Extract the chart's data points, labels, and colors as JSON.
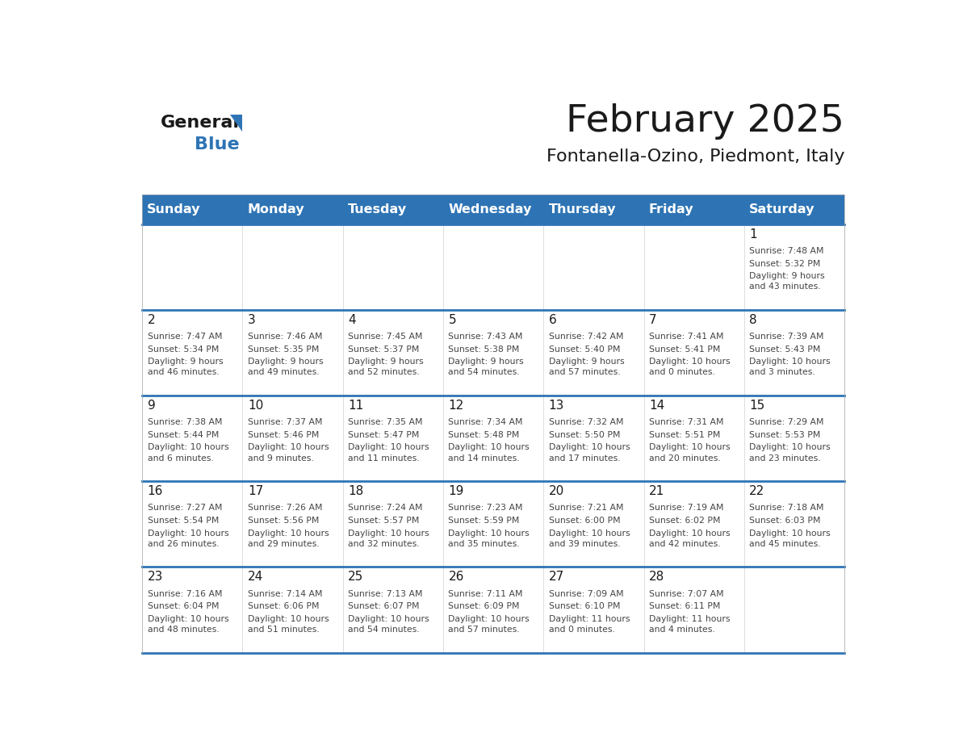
{
  "title": "February 2025",
  "subtitle": "Fontanella-Ozino, Piedmont, Italy",
  "days_of_week": [
    "Sunday",
    "Monday",
    "Tuesday",
    "Wednesday",
    "Thursday",
    "Friday",
    "Saturday"
  ],
  "header_bg": "#2e74b5",
  "header_fg": "#ffffff",
  "divider_color": "#2e74b5",
  "text_color": "#333333",
  "calendar_data": [
    [
      {
        "day": null
      },
      {
        "day": null
      },
      {
        "day": null
      },
      {
        "day": null
      },
      {
        "day": null
      },
      {
        "day": null
      },
      {
        "day": 1,
        "sunrise": "7:48 AM",
        "sunset": "5:32 PM",
        "daylight": "9 hours\nand 43 minutes."
      }
    ],
    [
      {
        "day": 2,
        "sunrise": "7:47 AM",
        "sunset": "5:34 PM",
        "daylight": "9 hours\nand 46 minutes."
      },
      {
        "day": 3,
        "sunrise": "7:46 AM",
        "sunset": "5:35 PM",
        "daylight": "9 hours\nand 49 minutes."
      },
      {
        "day": 4,
        "sunrise": "7:45 AM",
        "sunset": "5:37 PM",
        "daylight": "9 hours\nand 52 minutes."
      },
      {
        "day": 5,
        "sunrise": "7:43 AM",
        "sunset": "5:38 PM",
        "daylight": "9 hours\nand 54 minutes."
      },
      {
        "day": 6,
        "sunrise": "7:42 AM",
        "sunset": "5:40 PM",
        "daylight": "9 hours\nand 57 minutes."
      },
      {
        "day": 7,
        "sunrise": "7:41 AM",
        "sunset": "5:41 PM",
        "daylight": "10 hours\nand 0 minutes."
      },
      {
        "day": 8,
        "sunrise": "7:39 AM",
        "sunset": "5:43 PM",
        "daylight": "10 hours\nand 3 minutes."
      }
    ],
    [
      {
        "day": 9,
        "sunrise": "7:38 AM",
        "sunset": "5:44 PM",
        "daylight": "10 hours\nand 6 minutes."
      },
      {
        "day": 10,
        "sunrise": "7:37 AM",
        "sunset": "5:46 PM",
        "daylight": "10 hours\nand 9 minutes."
      },
      {
        "day": 11,
        "sunrise": "7:35 AM",
        "sunset": "5:47 PM",
        "daylight": "10 hours\nand 11 minutes."
      },
      {
        "day": 12,
        "sunrise": "7:34 AM",
        "sunset": "5:48 PM",
        "daylight": "10 hours\nand 14 minutes."
      },
      {
        "day": 13,
        "sunrise": "7:32 AM",
        "sunset": "5:50 PM",
        "daylight": "10 hours\nand 17 minutes."
      },
      {
        "day": 14,
        "sunrise": "7:31 AM",
        "sunset": "5:51 PM",
        "daylight": "10 hours\nand 20 minutes."
      },
      {
        "day": 15,
        "sunrise": "7:29 AM",
        "sunset": "5:53 PM",
        "daylight": "10 hours\nand 23 minutes."
      }
    ],
    [
      {
        "day": 16,
        "sunrise": "7:27 AM",
        "sunset": "5:54 PM",
        "daylight": "10 hours\nand 26 minutes."
      },
      {
        "day": 17,
        "sunrise": "7:26 AM",
        "sunset": "5:56 PM",
        "daylight": "10 hours\nand 29 minutes."
      },
      {
        "day": 18,
        "sunrise": "7:24 AM",
        "sunset": "5:57 PM",
        "daylight": "10 hours\nand 32 minutes."
      },
      {
        "day": 19,
        "sunrise": "7:23 AM",
        "sunset": "5:59 PM",
        "daylight": "10 hours\nand 35 minutes."
      },
      {
        "day": 20,
        "sunrise": "7:21 AM",
        "sunset": "6:00 PM",
        "daylight": "10 hours\nand 39 minutes."
      },
      {
        "day": 21,
        "sunrise": "7:19 AM",
        "sunset": "6:02 PM",
        "daylight": "10 hours\nand 42 minutes."
      },
      {
        "day": 22,
        "sunrise": "7:18 AM",
        "sunset": "6:03 PM",
        "daylight": "10 hours\nand 45 minutes."
      }
    ],
    [
      {
        "day": 23,
        "sunrise": "7:16 AM",
        "sunset": "6:04 PM",
        "daylight": "10 hours\nand 48 minutes."
      },
      {
        "day": 24,
        "sunrise": "7:14 AM",
        "sunset": "6:06 PM",
        "daylight": "10 hours\nand 51 minutes."
      },
      {
        "day": 25,
        "sunrise": "7:13 AM",
        "sunset": "6:07 PM",
        "daylight": "10 hours\nand 54 minutes."
      },
      {
        "day": 26,
        "sunrise": "7:11 AM",
        "sunset": "6:09 PM",
        "daylight": "10 hours\nand 57 minutes."
      },
      {
        "day": 27,
        "sunrise": "7:09 AM",
        "sunset": "6:10 PM",
        "daylight": "11 hours\nand 0 minutes."
      },
      {
        "day": 28,
        "sunrise": "7:07 AM",
        "sunset": "6:11 PM",
        "daylight": "11 hours\nand 4 minutes."
      },
      {
        "day": null
      }
    ]
  ]
}
